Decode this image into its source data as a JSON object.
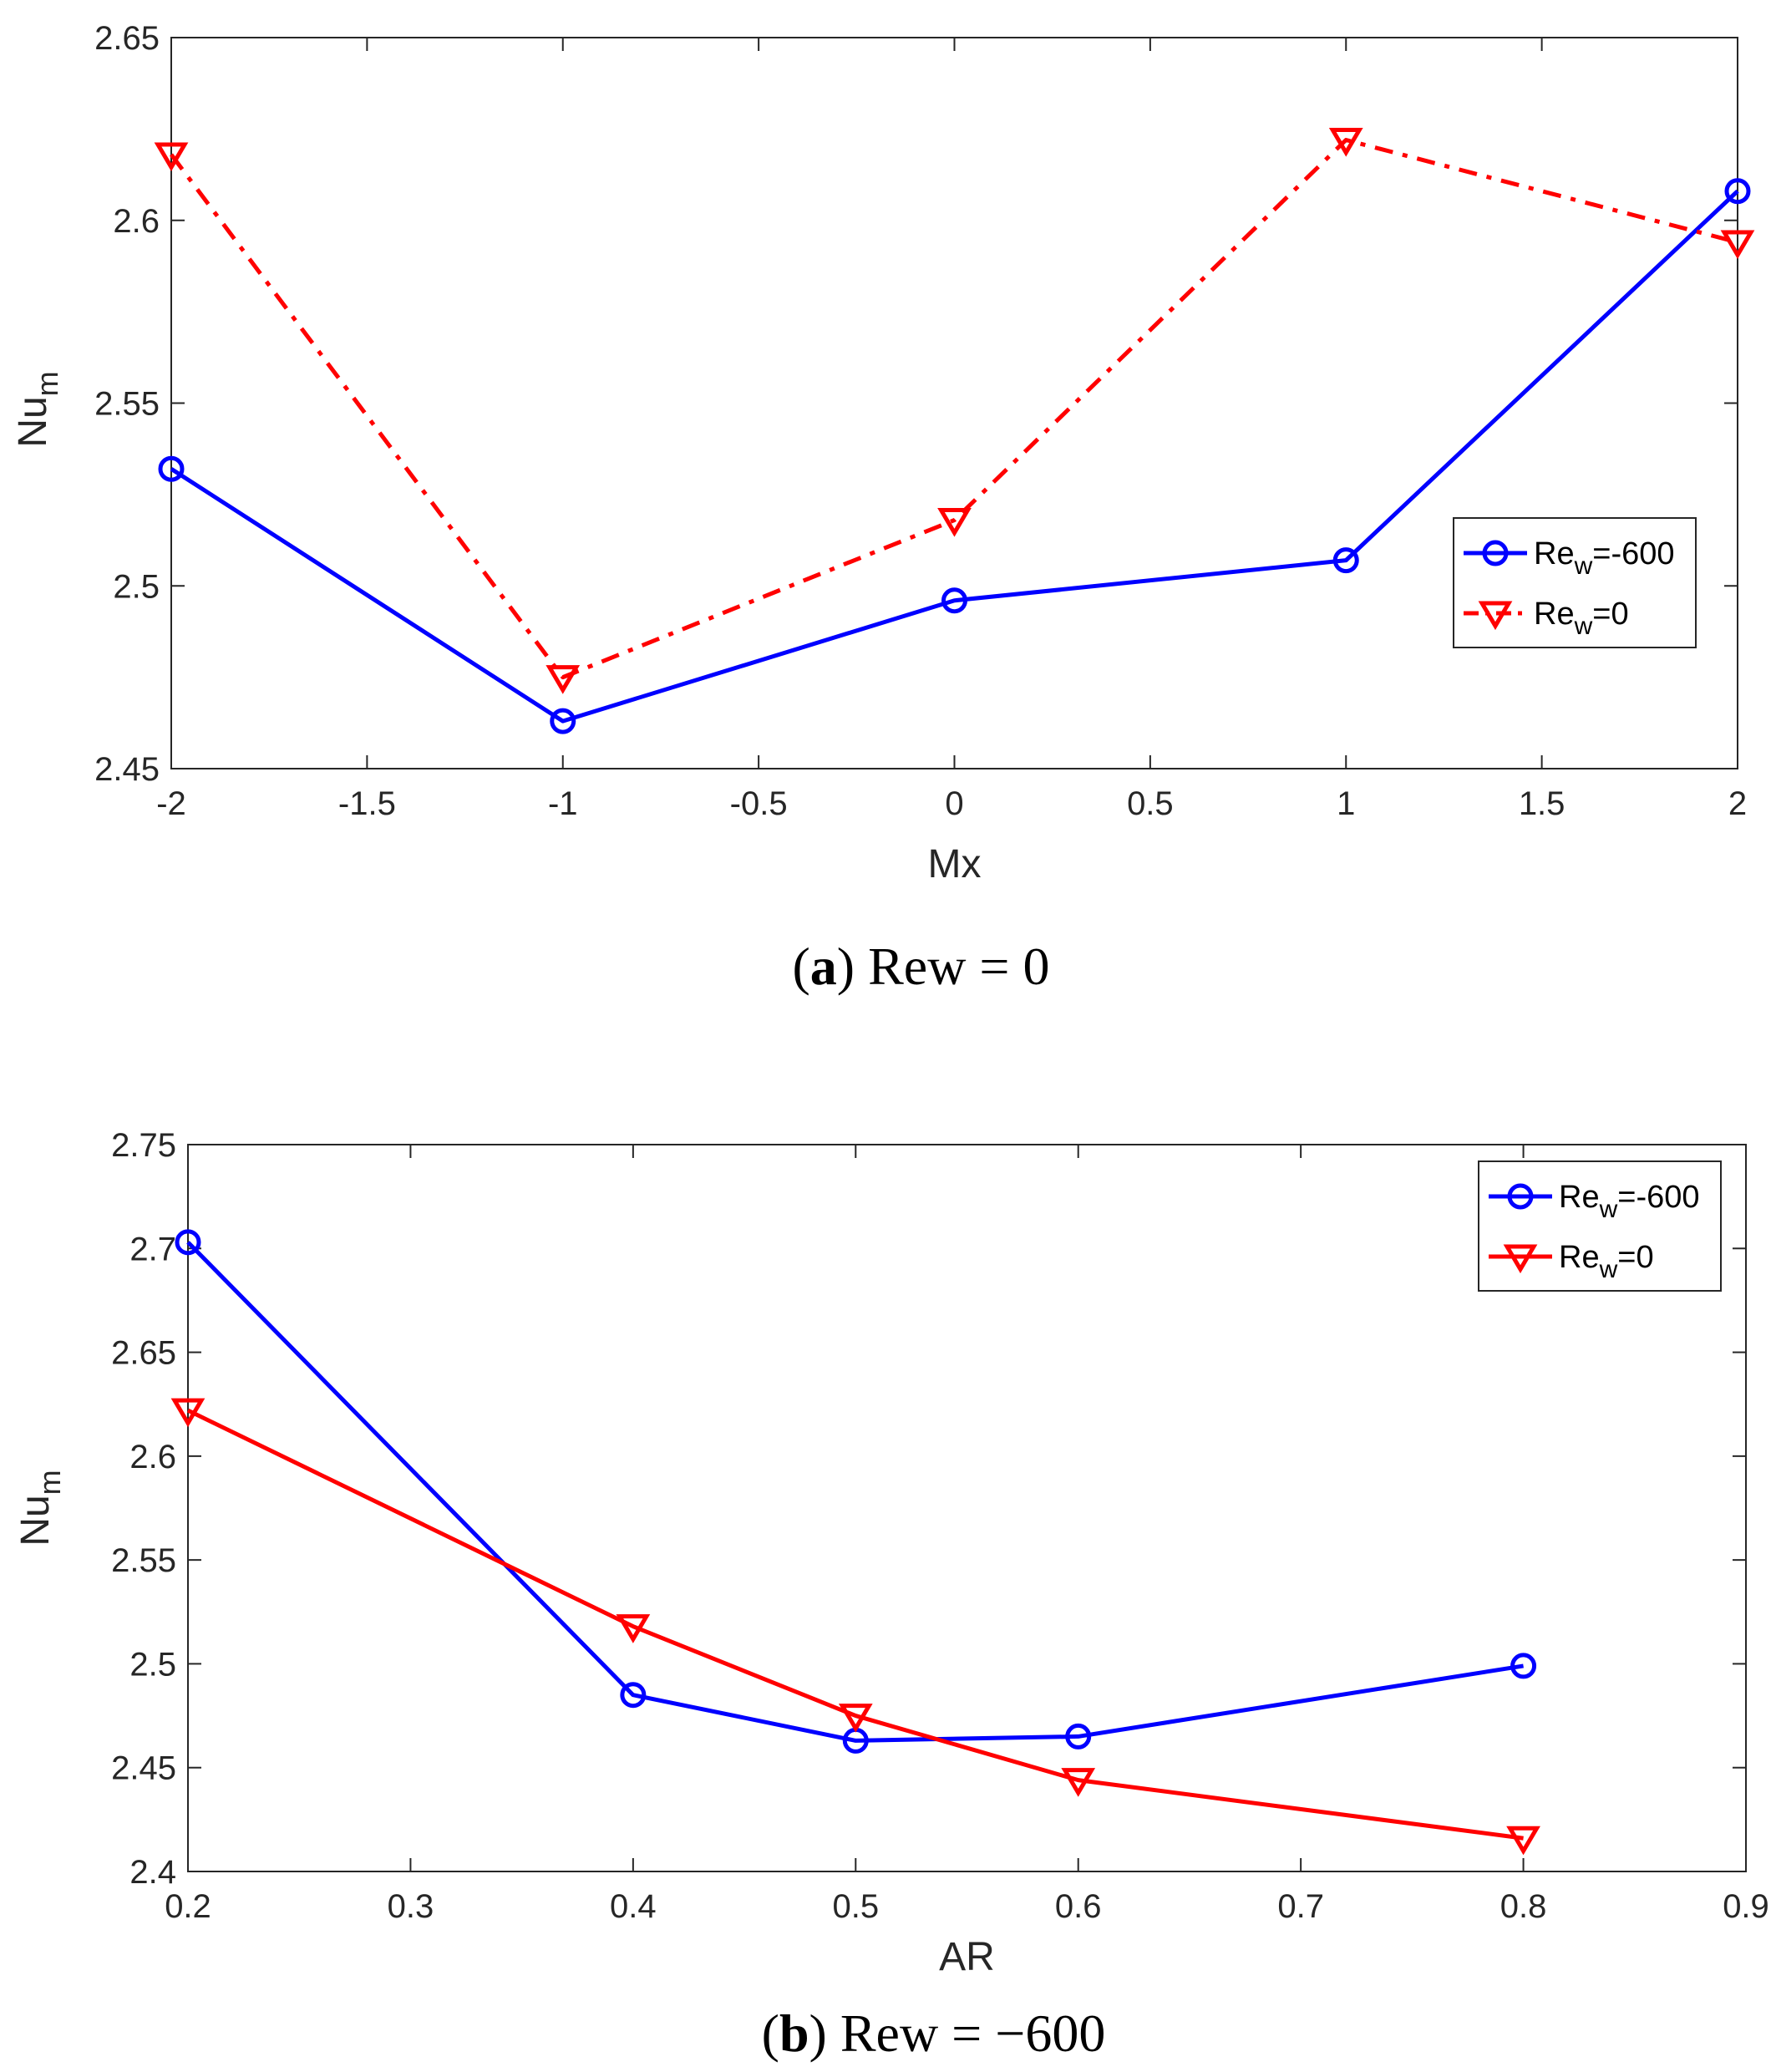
{
  "chart_data": [
    {
      "type": "line",
      "caption_letter": "a",
      "caption_text": " Rew = 0",
      "xlabel": "Mx",
      "ylabel": "Nu",
      "ylabel_sub": "m",
      "xlim": [
        -2,
        2
      ],
      "ylim": [
        2.45,
        2.65
      ],
      "xticks": [
        -2,
        -1.5,
        -1,
        -0.5,
        0,
        0.5,
        1,
        1.5,
        2
      ],
      "xtick_labels": [
        "-2",
        "-1.5",
        "-1",
        "-0.5",
        "0",
        "0.5",
        "1",
        "1.5",
        "2"
      ],
      "yticks": [
        2.45,
        2.5,
        2.55,
        2.6,
        2.65
      ],
      "ytick_labels": [
        "2.45",
        "2.5",
        "2.55",
        "2.6",
        "2.65"
      ],
      "legend_position": "center-right",
      "series": [
        {
          "name_main": "Re",
          "name_sub": "w",
          "name_tail": "=-600",
          "color": "#0000ff",
          "marker": "circle",
          "dash": "solid",
          "x": [
            -2,
            -1,
            0,
            1,
            2
          ],
          "values": [
            2.532,
            2.463,
            2.496,
            2.507,
            2.608
          ]
        },
        {
          "name_main": "Re",
          "name_sub": "w",
          "name_tail": "=0",
          "color": "#ff0000",
          "marker": "triangle-down",
          "dash": "dashdot",
          "x": [
            -2,
            -1,
            0,
            1,
            2
          ],
          "values": [
            2.618,
            2.475,
            2.518,
            2.622,
            2.594
          ]
        }
      ]
    },
    {
      "type": "line",
      "caption_letter": "b",
      "caption_text": " Rew = −600",
      "xlabel": "AR",
      "ylabel": "Nu",
      "ylabel_sub": "m",
      "xlim": [
        0.2,
        0.9
      ],
      "ylim": [
        2.4,
        2.75
      ],
      "xticks": [
        0.2,
        0.3,
        0.4,
        0.5,
        0.6,
        0.7,
        0.8,
        0.9
      ],
      "xtick_labels": [
        "0.2",
        "0.3",
        "0.4",
        "0.5",
        "0.6",
        "0.7",
        "0.8",
        "0.9"
      ],
      "yticks": [
        2.4,
        2.45,
        2.5,
        2.55,
        2.6,
        2.65,
        2.7,
        2.75
      ],
      "ytick_labels": [
        "2.4",
        "2.45",
        "2.5",
        "2.55",
        "2.6",
        "2.65",
        "2.7",
        "2.75"
      ],
      "legend_position": "top-right",
      "series": [
        {
          "name_main": "Re",
          "name_sub": "w",
          "name_tail": "=-600",
          "color": "#0000ff",
          "marker": "circle",
          "dash": "solid",
          "x": [
            0.2,
            0.4,
            0.5,
            0.6,
            0.8
          ],
          "values": [
            2.703,
            2.485,
            2.463,
            2.465,
            2.499
          ]
        },
        {
          "name_main": "Re",
          "name_sub": "w",
          "name_tail": "=0",
          "color": "#ff0000",
          "marker": "triangle-down",
          "dash": "solid",
          "x": [
            0.2,
            0.4,
            0.5,
            0.6,
            0.8
          ],
          "values": [
            2.622,
            2.518,
            2.475,
            2.444,
            2.416
          ]
        }
      ]
    }
  ]
}
